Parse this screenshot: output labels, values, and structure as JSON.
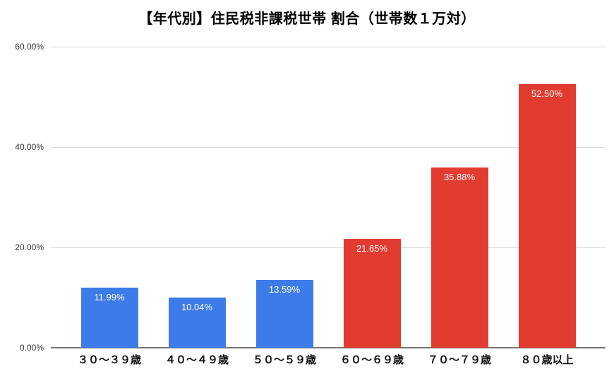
{
  "chart_data": {
    "type": "bar",
    "title": "【年代別】住民税非課税世帯 割合（世帯数１万対）",
    "categories": [
      "３０〜３９歳",
      "４０〜４９歳",
      "５０〜５９歳",
      "６０〜６９歳",
      "７０〜７９歳",
      "８０歳以上"
    ],
    "values": [
      11.99,
      10.04,
      13.59,
      21.65,
      35.88,
      52.5
    ],
    "value_labels": [
      "11.99%",
      "10.04%",
      "13.59%",
      "21.65%",
      "35.88%",
      "52.50%"
    ],
    "bar_colors": [
      "#3d7ce8",
      "#3d7ce8",
      "#3d7ce8",
      "#e23b30",
      "#e23b30",
      "#e23b30"
    ],
    "y_ticks": [
      {
        "value": 0,
        "label": "0.00%"
      },
      {
        "value": 20,
        "label": "20.00%"
      },
      {
        "value": 40,
        "label": "40.00%"
      },
      {
        "value": 60,
        "label": "60.00%"
      }
    ],
    "ylim": [
      0,
      60
    ],
    "xlabel": "",
    "ylabel": "",
    "grid": true,
    "legend": "none"
  },
  "colors": {
    "background": "#ffffff",
    "gridline": "#d9d9d9",
    "axis_line": "#757575",
    "tick_text": "#333333",
    "category_text": "#111111",
    "bar_label_text": "#ffffff",
    "blue_series": "#3d7ce8",
    "red_series": "#e23b30"
  }
}
